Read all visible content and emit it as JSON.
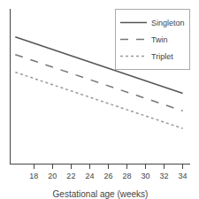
{
  "chart_data": {
    "type": "line",
    "xlabel": "Gestational age (weeks)",
    "x": [
      16,
      34
    ],
    "series": [
      {
        "name": "Singleton",
        "color": "#555555",
        "line_style": "solid",
        "values": [
          38,
          30
        ]
      },
      {
        "name": "Twin",
        "color": "#777777",
        "line_style": "dashed",
        "values": [
          35.5,
          27.5
        ]
      },
      {
        "name": "Triplet",
        "color": "#999999",
        "line_style": "dotted",
        "values": [
          33,
          25
        ]
      }
    ],
    "xlim": [
      15.5,
      34.8
    ],
    "xticks": [
      18,
      20,
      22,
      24,
      26,
      28,
      30,
      32,
      34
    ],
    "ylim": [
      20,
      42
    ],
    "tick_labels": "x",
    "grid": false,
    "legend": "upper right"
  }
}
